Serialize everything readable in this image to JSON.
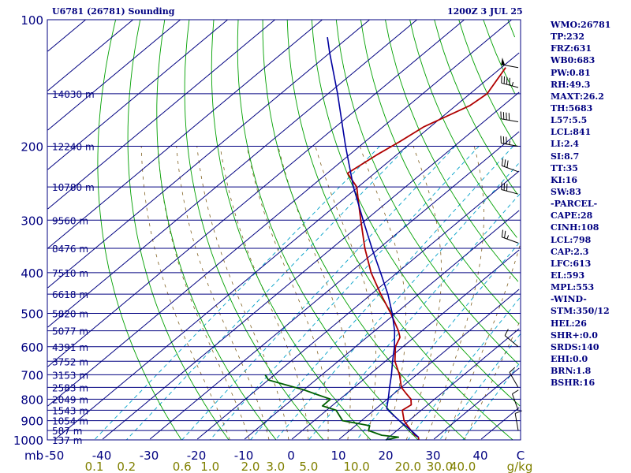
{
  "header": {
    "station_title": "U6781 (26781) Sounding",
    "valid_time": "1200Z  3 JUL 25"
  },
  "indices": [
    "WMO:26781",
    "TP:232",
    "FRZ:631",
    "WB0:683",
    "PW:0.81",
    "RH:49.3",
    "MAXT:26.2",
    "TH:5683",
    "L57:5.5",
    "LCL:841",
    "LI:2.4",
    "SI:8.7",
    "TT:35",
    "KI:16",
    "SW:83",
    "-PARCEL-",
    "CAPE:28",
    "CINH:108",
    "LCL:798",
    "CAP:2.3",
    "LFC:613",
    "EL:593",
    "MPL:553",
    "-WIND-",
    "STM:350/12",
    "HEL:26",
    "SHR+:0.0",
    "SRDS:140",
    "EHI:0.0",
    "BRN:1.8",
    "BSHR:16"
  ],
  "colors": {
    "frame": "#000080",
    "isobar": "#000080",
    "isotherm": "#000080",
    "dry_adiabat": "#00a000",
    "moist_adiabat": "#806020",
    "mixing_ratio": "#00a0c8",
    "temperature": "#b00000",
    "dewpoint": "#006000",
    "parcel": "#0000a0",
    "wind_barb": "#000000",
    "temp_axis_text": "#000080",
    "mixing_axis_text": "#808000"
  },
  "chart_data": {
    "type": "skew-t log-p",
    "y_axis_label": "mb",
    "pressure_ticks": [
      100,
      200,
      300,
      400,
      500,
      600,
      700,
      800,
      900,
      1000
    ],
    "pressure_range_hpa": [
      100,
      1000
    ],
    "temperature_axis_label": "C",
    "temperature_ticks": [
      "-50",
      "-40",
      "-30",
      "-20",
      "-10",
      "0",
      "10",
      "20",
      "30",
      "40"
    ],
    "mixing_ratio_label": "g/kg",
    "mixing_ratio_ticks": [
      "0.1",
      "0.2",
      "0.6",
      "1.0",
      "2.0",
      "3.0",
      "5.0",
      "10.0",
      "20.0",
      "30.0",
      "40.0"
    ],
    "height_labels": [
      {
        "p": 150,
        "label": "14030 m"
      },
      {
        "p": 200,
        "label": "12240 m"
      },
      {
        "p": 250,
        "label": "10780 m"
      },
      {
        "p": 300,
        "label": "9560 m"
      },
      {
        "p": 350,
        "label": "8476 m"
      },
      {
        "p": 400,
        "label": "7510 m"
      },
      {
        "p": 450,
        "label": "6618 m"
      },
      {
        "p": 500,
        "label": "5820 m"
      },
      {
        "p": 550,
        "label": "5077 m"
      },
      {
        "p": 600,
        "label": "4391 m"
      },
      {
        "p": 650,
        "label": "3752 m"
      },
      {
        "p": 700,
        "label": "3153 m"
      },
      {
        "p": 750,
        "label": "2583 m"
      },
      {
        "p": 800,
        "label": "2049 m"
      },
      {
        "p": 850,
        "label": "1543 m"
      },
      {
        "p": 900,
        "label": "1054 m"
      },
      {
        "p": 950,
        "label": "587 m"
      },
      {
        "p": 1000,
        "label": "137 m"
      }
    ],
    "series": [
      {
        "key": "temperature",
        "points": [
          {
            "p": 1000,
            "t": 27
          },
          {
            "p": 985,
            "t": 26.2
          },
          {
            "p": 975,
            "t": 25
          },
          {
            "p": 950,
            "t": 23
          },
          {
            "p": 925,
            "t": 21
          },
          {
            "p": 900,
            "t": 19
          },
          {
            "p": 850,
            "t": 16
          },
          {
            "p": 825,
            "t": 16.5
          },
          {
            "p": 800,
            "t": 15
          },
          {
            "p": 775,
            "t": 12.5
          },
          {
            "p": 750,
            "t": 10
          },
          {
            "p": 700,
            "t": 6.4
          },
          {
            "p": 650,
            "t": 2
          },
          {
            "p": 600,
            "t": -1.6
          },
          {
            "p": 570,
            "t": -3
          },
          {
            "p": 550,
            "t": -5
          },
          {
            "p": 500,
            "t": -11
          },
          {
            "p": 450,
            "t": -18
          },
          {
            "p": 400,
            "t": -25.5
          },
          {
            "p": 350,
            "t": -33
          },
          {
            "p": 300,
            "t": -41
          },
          {
            "p": 270,
            "t": -46.4
          },
          {
            "p": 250,
            "t": -50.3
          },
          {
            "p": 232,
            "t": -55.7
          },
          {
            "p": 210,
            "t": -54.2
          },
          {
            "p": 195,
            "t": -52.7
          },
          {
            "p": 180,
            "t": -51.4
          },
          {
            "p": 160,
            "t": -47
          },
          {
            "p": 150,
            "t": -46.4
          },
          {
            "p": 130,
            "t": -49.1
          }
        ]
      },
      {
        "key": "dewpoint",
        "points": [
          {
            "p": 1000,
            "t": 20
          },
          {
            "p": 985,
            "t": 22
          },
          {
            "p": 975,
            "t": 18
          },
          {
            "p": 950,
            "t": 14
          },
          {
            "p": 925,
            "t": 13
          },
          {
            "p": 900,
            "t": 6
          },
          {
            "p": 850,
            "t": 2
          },
          {
            "p": 830,
            "t": -2
          },
          {
            "p": 800,
            "t": -2
          },
          {
            "p": 780,
            "t": -6
          },
          {
            "p": 760,
            "t": -10
          },
          {
            "p": 740,
            "t": -15
          },
          {
            "p": 720,
            "t": -20
          },
          {
            "p": 700,
            "t": -22
          }
        ]
      },
      {
        "key": "parcel",
        "points": [
          {
            "p": 985,
            "t": 26.2
          },
          {
            "p": 950,
            "t": 23
          },
          {
            "p": 900,
            "t": 18
          },
          {
            "p": 850,
            "t": 13
          },
          {
            "p": 841,
            "t": 12.2
          },
          {
            "p": 800,
            "t": 10.2
          },
          {
            "p": 750,
            "t": 7.5
          },
          {
            "p": 700,
            "t": 4.7
          },
          {
            "p": 650,
            "t": 1.5
          },
          {
            "p": 600,
            "t": -1.8
          },
          {
            "p": 550,
            "t": -5.8
          },
          {
            "p": 500,
            "t": -10.7
          },
          {
            "p": 450,
            "t": -16.5
          },
          {
            "p": 400,
            "t": -23.5
          },
          {
            "p": 350,
            "t": -31.5
          },
          {
            "p": 300,
            "t": -40.5
          },
          {
            "p": 250,
            "t": -51
          },
          {
            "p": 200,
            "t": -63
          },
          {
            "p": 150,
            "t": -78
          },
          {
            "p": 120,
            "t": -90
          },
          {
            "p": 110,
            "t": -94.5
          }
        ]
      }
    ],
    "wind_barbs": [
      {
        "p": 130,
        "dir": 280,
        "speed_kt": 50
      },
      {
        "p": 145,
        "dir": 285,
        "speed_kt": 45
      },
      {
        "p": 175,
        "dir": 280,
        "speed_kt": 40
      },
      {
        "p": 200,
        "dir": 280,
        "speed_kt": 35
      },
      {
        "p": 230,
        "dir": 290,
        "speed_kt": 30
      },
      {
        "p": 260,
        "dir": 285,
        "speed_kt": 30
      },
      {
        "p": 340,
        "dir": 290,
        "speed_kt": 25
      },
      {
        "p": 600,
        "dir": 310,
        "speed_kt": 10
      },
      {
        "p": 750,
        "dir": 330,
        "speed_kt": 10
      },
      {
        "p": 850,
        "dir": 340,
        "speed_kt": 10
      },
      {
        "p": 950,
        "dir": 350,
        "speed_kt": 10
      }
    ]
  }
}
